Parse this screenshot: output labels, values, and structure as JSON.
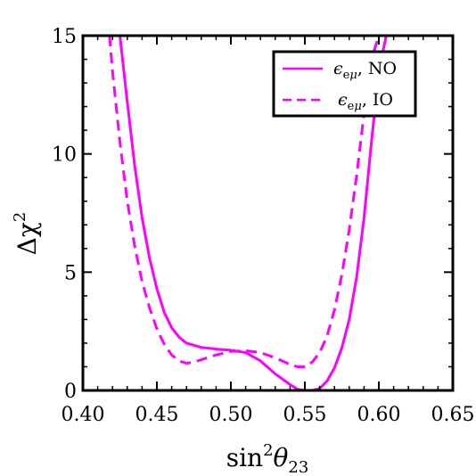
{
  "chart_data": {
    "type": "line",
    "xlabel": "sin²θ₂₃",
    "ylabel": "Δχ²",
    "xlim": [
      0.4,
      0.65
    ],
    "ylim": [
      0,
      15
    ],
    "xticks": [
      0.4,
      0.45,
      0.5,
      0.55,
      0.6,
      0.65
    ],
    "xtick_labels": [
      "0.40",
      "0.45",
      "0.50",
      "0.55",
      "0.60",
      "0.65"
    ],
    "yticks": [
      0,
      5,
      10,
      15
    ],
    "ytick_labels": [
      "0",
      "5",
      "10",
      "15"
    ],
    "legend_position": "top-right",
    "series": [
      {
        "name": "ε_eμ, NO",
        "color": "#ff00ff",
        "style": "solid",
        "x": [
          0.425,
          0.43,
          0.435,
          0.44,
          0.445,
          0.45,
          0.455,
          0.46,
          0.465,
          0.47,
          0.48,
          0.49,
          0.5,
          0.51,
          0.52,
          0.53,
          0.54,
          0.545,
          0.55,
          0.555,
          0.56,
          0.565,
          0.57,
          0.575,
          0.58,
          0.585,
          0.59,
          0.595,
          0.6,
          0.605
        ],
        "y": [
          15.0,
          12.2,
          9.5,
          7.3,
          5.6,
          4.3,
          3.3,
          2.65,
          2.25,
          2.0,
          1.82,
          1.75,
          1.7,
          1.6,
          1.25,
          0.7,
          0.25,
          0.05,
          0.0,
          0.0,
          0.08,
          0.4,
          0.95,
          1.8,
          3.0,
          4.8,
          7.3,
          10.5,
          13.5,
          15.0
        ]
      },
      {
        "name": "ε_eμ, IO",
        "color": "#ff00ff",
        "style": "dashed",
        "x": [
          0.418,
          0.42,
          0.425,
          0.43,
          0.435,
          0.44,
          0.445,
          0.45,
          0.455,
          0.46,
          0.465,
          0.47,
          0.475,
          0.48,
          0.49,
          0.5,
          0.51,
          0.52,
          0.53,
          0.54,
          0.545,
          0.55,
          0.555,
          0.56,
          0.565,
          0.57,
          0.575,
          0.58,
          0.585,
          0.59,
          0.595,
          0.6
        ],
        "y": [
          15.0,
          13.5,
          10.5,
          8.0,
          6.1,
          4.6,
          3.5,
          2.6,
          1.95,
          1.5,
          1.25,
          1.15,
          1.2,
          1.3,
          1.5,
          1.65,
          1.68,
          1.6,
          1.38,
          1.1,
          1.0,
          1.0,
          1.2,
          1.6,
          2.3,
          3.4,
          4.9,
          6.8,
          9.1,
          11.7,
          14.0,
          15.0
        ]
      }
    ]
  }
}
